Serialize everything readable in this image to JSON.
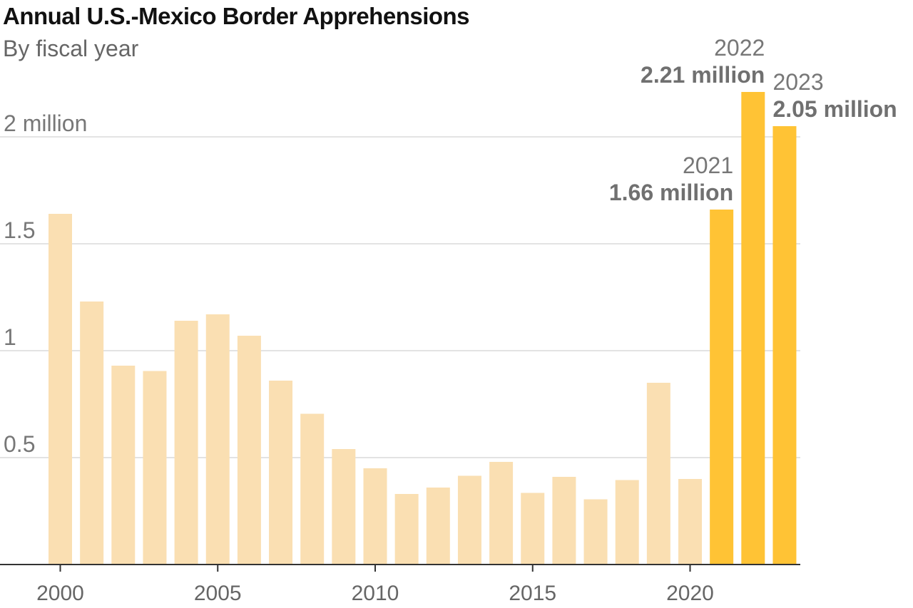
{
  "chart_data": {
    "type": "bar",
    "title": "Annual U.S.-Mexico Border Apprehensions",
    "subtitle": "By fiscal year",
    "xlabel": "",
    "ylabel": "",
    "categories": [
      "2000",
      "2001",
      "2002",
      "2003",
      "2004",
      "2005",
      "2006",
      "2007",
      "2008",
      "2009",
      "2010",
      "2011",
      "2012",
      "2013",
      "2014",
      "2015",
      "2016",
      "2017",
      "2018",
      "2019",
      "2020",
      "2021",
      "2022",
      "2023"
    ],
    "values": [
      1.64,
      1.23,
      0.93,
      0.905,
      1.14,
      1.17,
      1.07,
      0.86,
      0.705,
      0.54,
      0.45,
      0.33,
      0.36,
      0.415,
      0.48,
      0.335,
      0.41,
      0.305,
      0.395,
      0.85,
      0.4,
      1.66,
      2.21,
      2.05
    ],
    "highlight_categories": [
      "2021",
      "2022",
      "2023"
    ],
    "ylim": [
      0,
      2.21
    ],
    "yticks": [
      {
        "value": 0.5,
        "label": "0.5"
      },
      {
        "value": 1,
        "label": "1"
      },
      {
        "value": 1.5,
        "label": "1.5"
      },
      {
        "value": 2,
        "label": "2 million"
      }
    ],
    "xticks": [
      "2000",
      "2005",
      "2010",
      "2015",
      "2020"
    ],
    "annotations": [
      {
        "category": "2021",
        "year": "2021",
        "value_label": "1.66 million",
        "anchor": "end"
      },
      {
        "category": "2022",
        "year": "2022",
        "value_label": "2.21 million",
        "anchor": "end"
      },
      {
        "category": "2023",
        "year": "2023",
        "value_label": "2.05 million",
        "anchor": "start"
      }
    ],
    "colors": {
      "base": "#fadfb2",
      "highlight": "#ffc335",
      "grid": "#e3e3e3",
      "axis": "#333333"
    },
    "grid": true
  }
}
